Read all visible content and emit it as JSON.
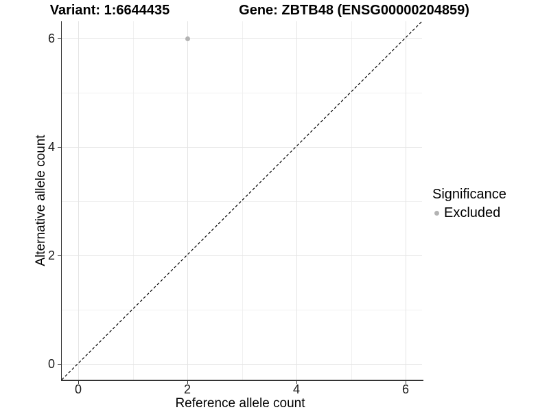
{
  "chart_data": {
    "type": "scatter",
    "title_left": "Variant: 1:6644435",
    "title_right": "Gene: ZBTB48 (ENSG00000204859)",
    "xlabel": "Reference allele count",
    "ylabel": "Alternative allele count",
    "xlim": [
      -0.3,
      6.3
    ],
    "ylim": [
      -0.3,
      6.3
    ],
    "x_ticks": [
      "0",
      "2",
      "4",
      "6"
    ],
    "y_ticks": [
      "0",
      "2",
      "4",
      "6"
    ],
    "grid": "major gridlines at even values, minor gridlines at odd values, light gray on white",
    "points": [
      {
        "x": 2,
        "y": 6,
        "series": "Excluded",
        "color": "#b3b3b3"
      }
    ],
    "reference_line": {
      "equation": "y = x",
      "style": "dashed",
      "color": "#000000",
      "from": [
        -0.3,
        -0.3
      ],
      "to": [
        6.3,
        6.3
      ]
    },
    "legend": {
      "title": "Significance",
      "position": "right",
      "entries": [
        {
          "label": "Excluded",
          "marker": "circle",
          "marker_color": "#b3b3b3"
        }
      ]
    },
    "colors": {
      "background": "#ffffff",
      "point": "#b3b3b3",
      "grid_major": "#e4e4e4",
      "grid_minor": "#f0f0f0",
      "axis_line": "#333333",
      "dashed_line": "#000000",
      "text": "#000000"
    }
  }
}
